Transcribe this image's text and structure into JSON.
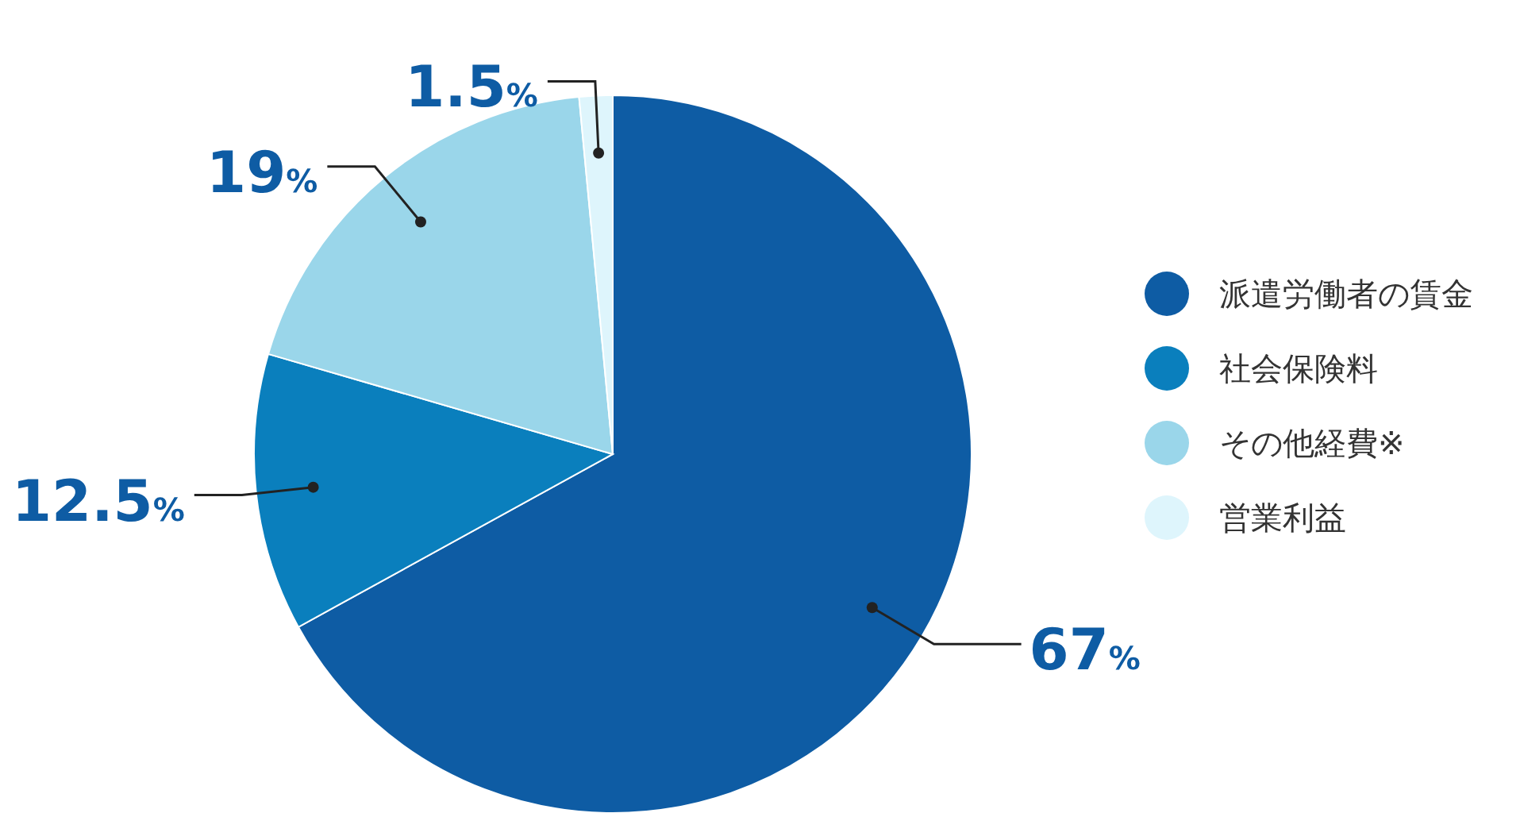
{
  "chart_data": {
    "type": "pie",
    "categories": [
      "派遣労働者の賃金",
      "社会保険料",
      "その他経費※",
      "営業利益"
    ],
    "values": [
      67,
      12.5,
      19,
      1.5
    ],
    "colors": [
      "#0e5ca4",
      "#0a7fbd",
      "#9ad6ea",
      "#def5fc"
    ],
    "value_labels": [
      "67%",
      "12.5%",
      "19%",
      "1.5%"
    ],
    "legend": "right"
  }
}
